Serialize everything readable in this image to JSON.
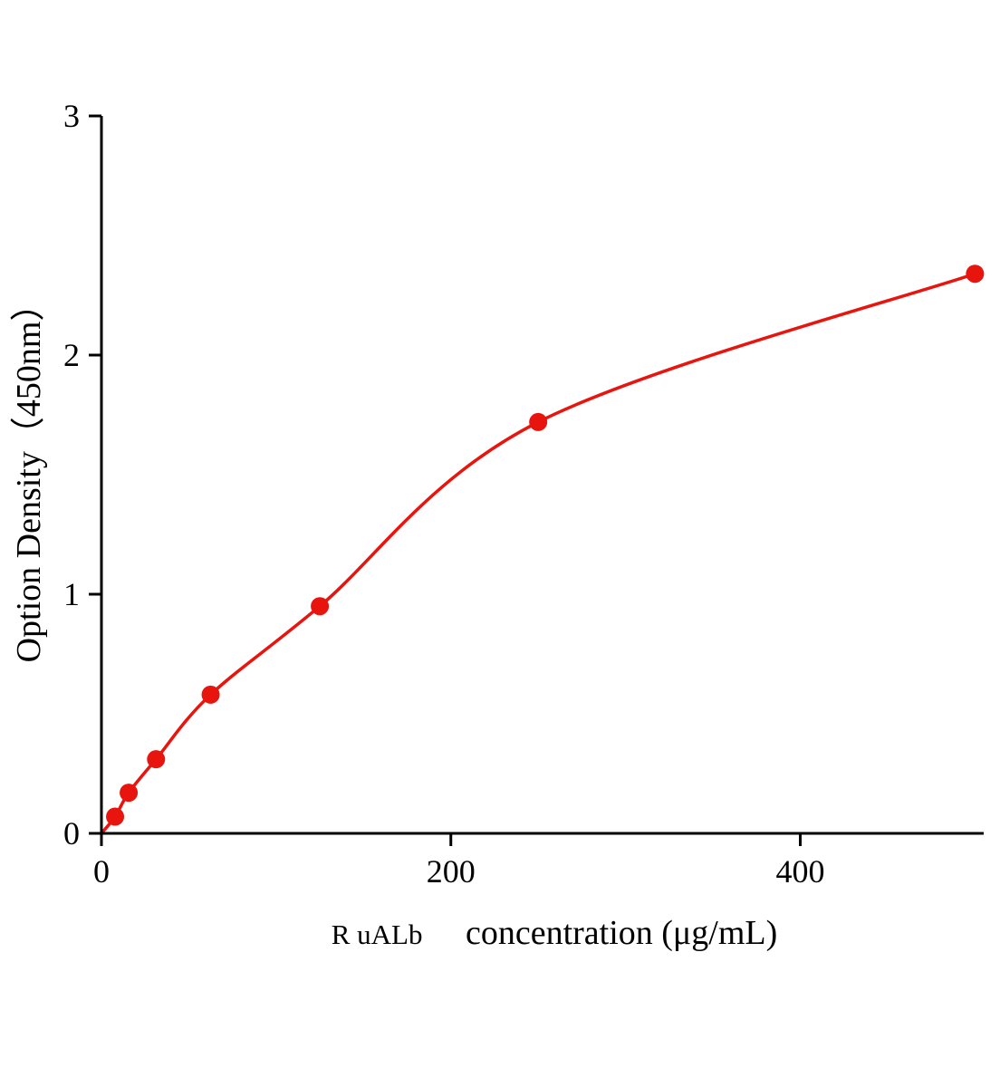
{
  "chart_data": {
    "type": "scatter",
    "title": "",
    "xlabel_prefix": "R uALb",
    "xlabel_main": "concentration (μg/mL)",
    "ylabel": "Option Density（450nm）",
    "x": [
      7.8,
      15.6,
      31.25,
      62.5,
      125,
      250,
      500
    ],
    "y": [
      0.07,
      0.17,
      0.31,
      0.58,
      0.95,
      1.72,
      2.34
    ],
    "curve_start": {
      "x": 0,
      "y": 0
    },
    "xlim": [
      0,
      505
    ],
    "ylim": [
      0,
      3
    ],
    "xticks": [
      0,
      200,
      400
    ],
    "yticks": [
      0,
      1,
      2,
      3
    ],
    "legend": "none",
    "grid": "off",
    "marker_color": "#e8140e",
    "line_color": "#e8140e",
    "axis_color": "#000000",
    "marker_radius": 10
  }
}
